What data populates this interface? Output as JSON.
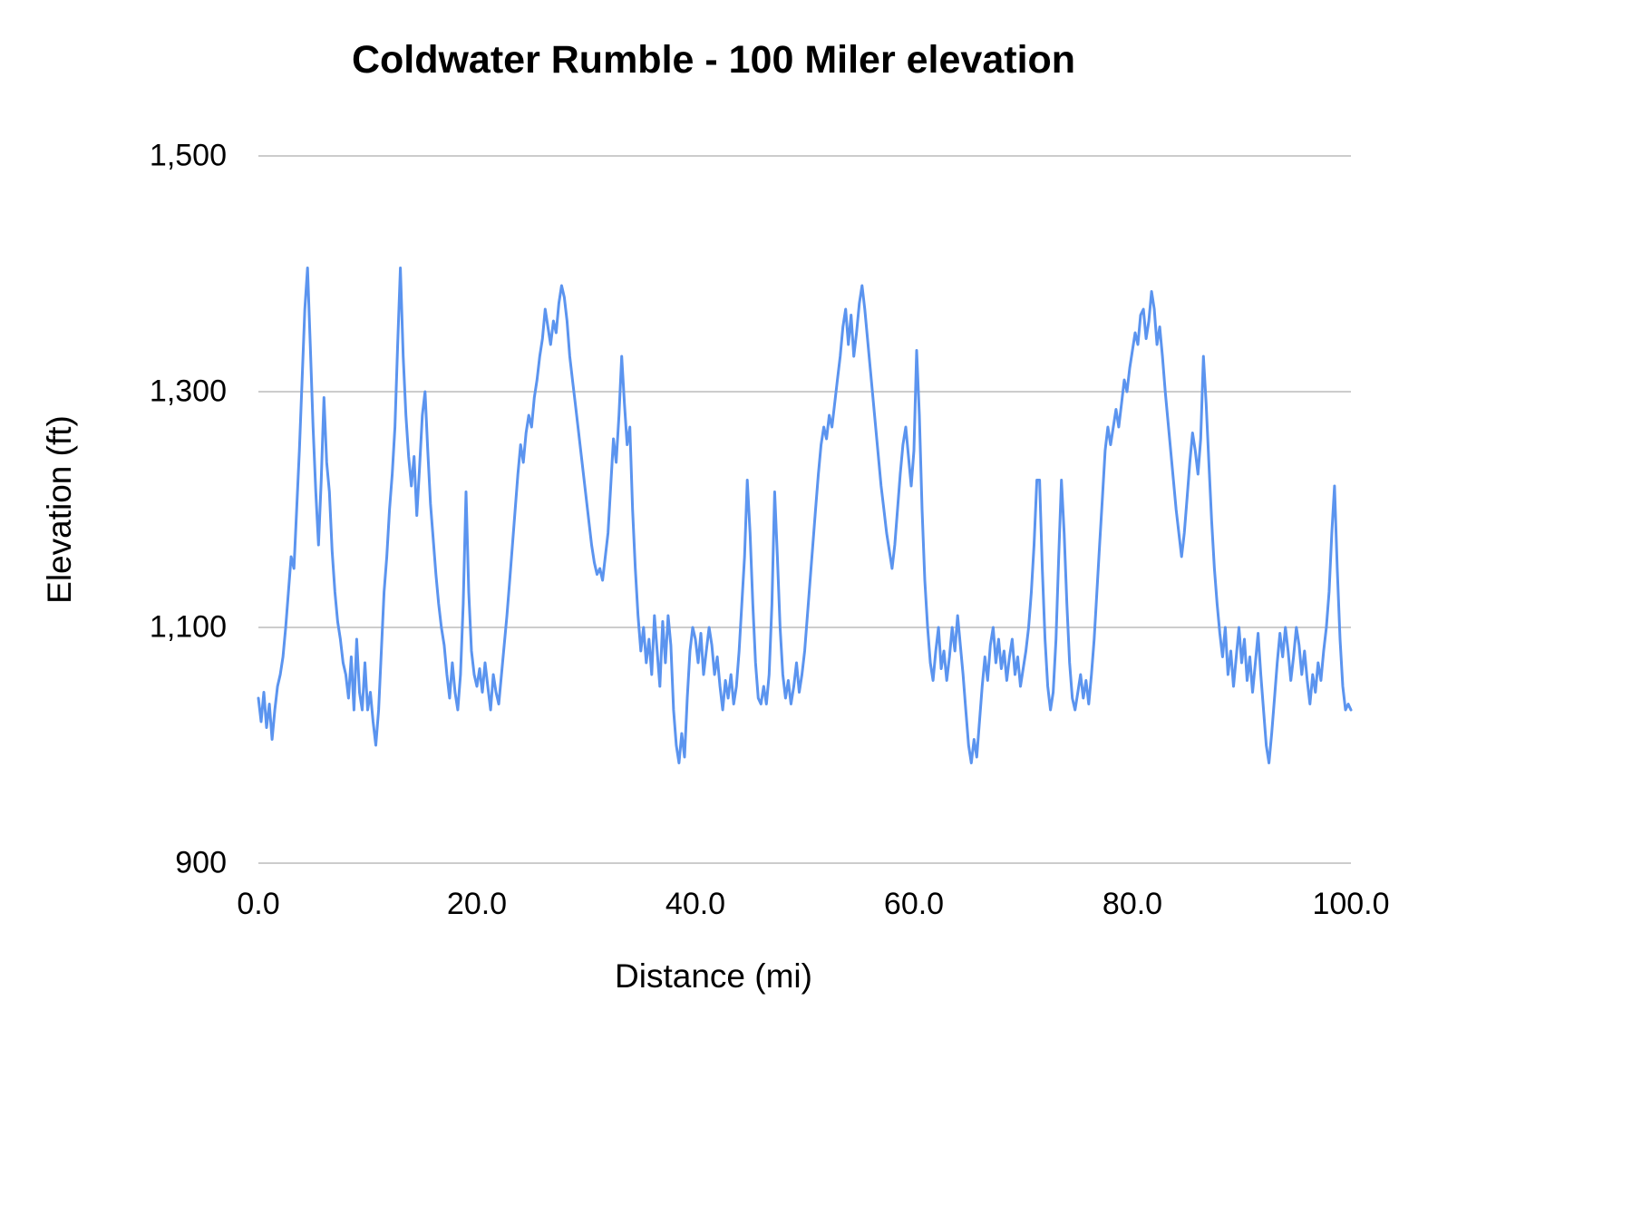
{
  "chart_data": {
    "type": "line",
    "title": "Coldwater Rumble - 100 Miler elevation",
    "xlabel": "Distance (mi)",
    "ylabel": "Elevation (ft)",
    "xlim": [
      0,
      100
    ],
    "ylim": [
      900,
      1500
    ],
    "grid": true,
    "legend": "none",
    "line_color": "#5b94ef",
    "grid_color": "#cccccc",
    "text_color": "#000000",
    "x_ticks": [
      {
        "label": "0.0",
        "value": 0
      },
      {
        "label": "20.0",
        "value": 20
      },
      {
        "label": "40.0",
        "value": 40
      },
      {
        "label": "60.0",
        "value": 60
      },
      {
        "label": "80.0",
        "value": 80
      },
      {
        "label": "100.0",
        "value": 100
      }
    ],
    "y_ticks": [
      {
        "label": "1,500",
        "value": 1500
      },
      {
        "label": "1,300",
        "value": 1300
      },
      {
        "label": "1,100",
        "value": 1100
      },
      {
        "label": "900",
        "value": 900
      }
    ],
    "series": [
      {
        "name": "Elevation (ft)",
        "x_start": 0,
        "x_step": 0.25,
        "values": [
          1040,
          1020,
          1045,
          1015,
          1035,
          1005,
          1030,
          1050,
          1060,
          1075,
          1100,
          1130,
          1160,
          1150,
          1200,
          1250,
          1310,
          1370,
          1405,
          1340,
          1270,
          1215,
          1170,
          1225,
          1295,
          1240,
          1215,
          1165,
          1130,
          1105,
          1090,
          1070,
          1060,
          1040,
          1075,
          1030,
          1090,
          1045,
          1030,
          1070,
          1030,
          1045,
          1020,
          1000,
          1030,
          1080,
          1130,
          1160,
          1200,
          1230,
          1270,
          1340,
          1405,
          1330,
          1280,
          1245,
          1220,
          1245,
          1195,
          1235,
          1280,
          1300,
          1250,
          1205,
          1175,
          1145,
          1120,
          1100,
          1085,
          1060,
          1040,
          1070,
          1045,
          1030,
          1060,
          1120,
          1215,
          1130,
          1080,
          1060,
          1050,
          1065,
          1045,
          1070,
          1050,
          1030,
          1060,
          1045,
          1035,
          1060,
          1085,
          1110,
          1140,
          1170,
          1200,
          1230,
          1255,
          1240,
          1265,
          1280,
          1270,
          1295,
          1310,
          1330,
          1345,
          1370,
          1355,
          1340,
          1360,
          1350,
          1375,
          1390,
          1380,
          1360,
          1330,
          1310,
          1290,
          1270,
          1250,
          1230,
          1210,
          1190,
          1170,
          1155,
          1145,
          1150,
          1140,
          1160,
          1180,
          1220,
          1260,
          1240,
          1280,
          1330,
          1290,
          1255,
          1270,
          1200,
          1150,
          1110,
          1080,
          1100,
          1070,
          1090,
          1060,
          1110,
          1080,
          1050,
          1105,
          1070,
          1110,
          1085,
          1030,
          1000,
          985,
          1010,
          990,
          1040,
          1080,
          1100,
          1090,
          1070,
          1095,
          1060,
          1080,
          1100,
          1085,
          1060,
          1075,
          1050,
          1030,
          1055,
          1040,
          1060,
          1035,
          1050,
          1080,
          1120,
          1160,
          1225,
          1180,
          1120,
          1070,
          1040,
          1035,
          1050,
          1035,
          1060,
          1120,
          1215,
          1160,
          1100,
          1060,
          1040,
          1055,
          1035,
          1050,
          1070,
          1045,
          1060,
          1080,
          1110,
          1140,
          1170,
          1200,
          1230,
          1255,
          1270,
          1260,
          1280,
          1270,
          1290,
          1310,
          1330,
          1355,
          1370,
          1340,
          1365,
          1330,
          1350,
          1375,
          1390,
          1370,
          1345,
          1320,
          1295,
          1270,
          1245,
          1220,
          1200,
          1180,
          1165,
          1150,
          1170,
          1200,
          1230,
          1255,
          1270,
          1245,
          1220,
          1250,
          1335,
          1280,
          1200,
          1140,
          1100,
          1070,
          1055,
          1080,
          1100,
          1065,
          1080,
          1055,
          1075,
          1100,
          1080,
          1110,
          1085,
          1060,
          1030,
          1000,
          985,
          1005,
          990,
          1020,
          1050,
          1075,
          1055,
          1085,
          1100,
          1070,
          1090,
          1065,
          1080,
          1055,
          1075,
          1090,
          1060,
          1075,
          1050,
          1065,
          1080,
          1100,
          1130,
          1170,
          1225,
          1225,
          1150,
          1090,
          1050,
          1030,
          1045,
          1090,
          1160,
          1225,
          1180,
          1120,
          1070,
          1040,
          1030,
          1045,
          1060,
          1040,
          1055,
          1035,
          1060,
          1090,
          1130,
          1170,
          1210,
          1250,
          1270,
          1255,
          1270,
          1285,
          1270,
          1290,
          1310,
          1300,
          1320,
          1335,
          1350,
          1340,
          1365,
          1370,
          1345,
          1360,
          1385,
          1370,
          1340,
          1355,
          1330,
          1300,
          1275,
          1250,
          1225,
          1200,
          1180,
          1160,
          1180,
          1210,
          1240,
          1265,
          1250,
          1230,
          1260,
          1330,
          1290,
          1240,
          1190,
          1150,
          1120,
          1095,
          1075,
          1100,
          1060,
          1080,
          1050,
          1075,
          1100,
          1070,
          1090,
          1055,
          1075,
          1045,
          1070,
          1095,
          1060,
          1030,
          1000,
          985,
          1010,
          1040,
          1070,
          1095,
          1075,
          1100,
          1080,
          1055,
          1075,
          1100,
          1085,
          1060,
          1080,
          1055,
          1035,
          1060,
          1045,
          1070,
          1055,
          1080,
          1100,
          1130,
          1180,
          1220,
          1150,
          1090,
          1050,
          1030,
          1035,
          1030
        ]
      }
    ]
  }
}
